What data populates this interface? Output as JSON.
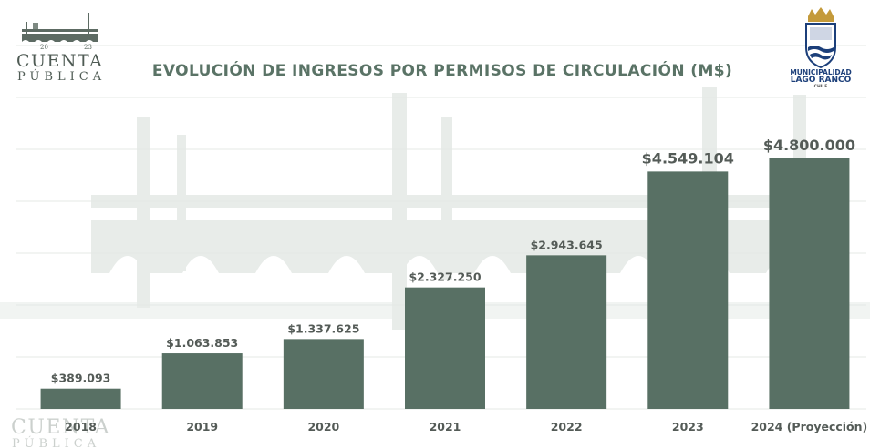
{
  "header": {
    "brand": {
      "year_left": "20",
      "year_right": "23",
      "line1": "CUENTA",
      "line2": "PÚBLICA"
    },
    "municipality": {
      "line1": "MUNICIPALIDAD",
      "line2": "LAGO RANCO",
      "line3": "CHILE"
    }
  },
  "colors": {
    "bar": "#587064",
    "title": "#5a7366",
    "label": "#545b57",
    "watermark": "#e6eae7",
    "brand": "#4f5b54",
    "gridline": "#e4e8e5"
  },
  "chart_data": {
    "type": "bar",
    "title": "EVOLUCIÓN DE INGRESOS POR PERMISOS DE CIRCULACIÓN (M$)",
    "xlabel": "",
    "ylabel": "",
    "ylim": [
      0,
      4800000
    ],
    "grid": true,
    "categories": [
      "2018",
      "2019",
      "2020",
      "2021",
      "2022",
      "2023",
      "2024 (Proyección)"
    ],
    "values": [
      389093,
      1063853,
      1337625,
      2327250,
      2943645,
      4549104,
      4800000
    ],
    "data_labels": [
      "$389.093",
      "$1.063.853",
      "$1.337.625",
      "$2.327.250",
      "$2.943.645",
      "$4.549.104",
      "$4.800.000"
    ]
  }
}
